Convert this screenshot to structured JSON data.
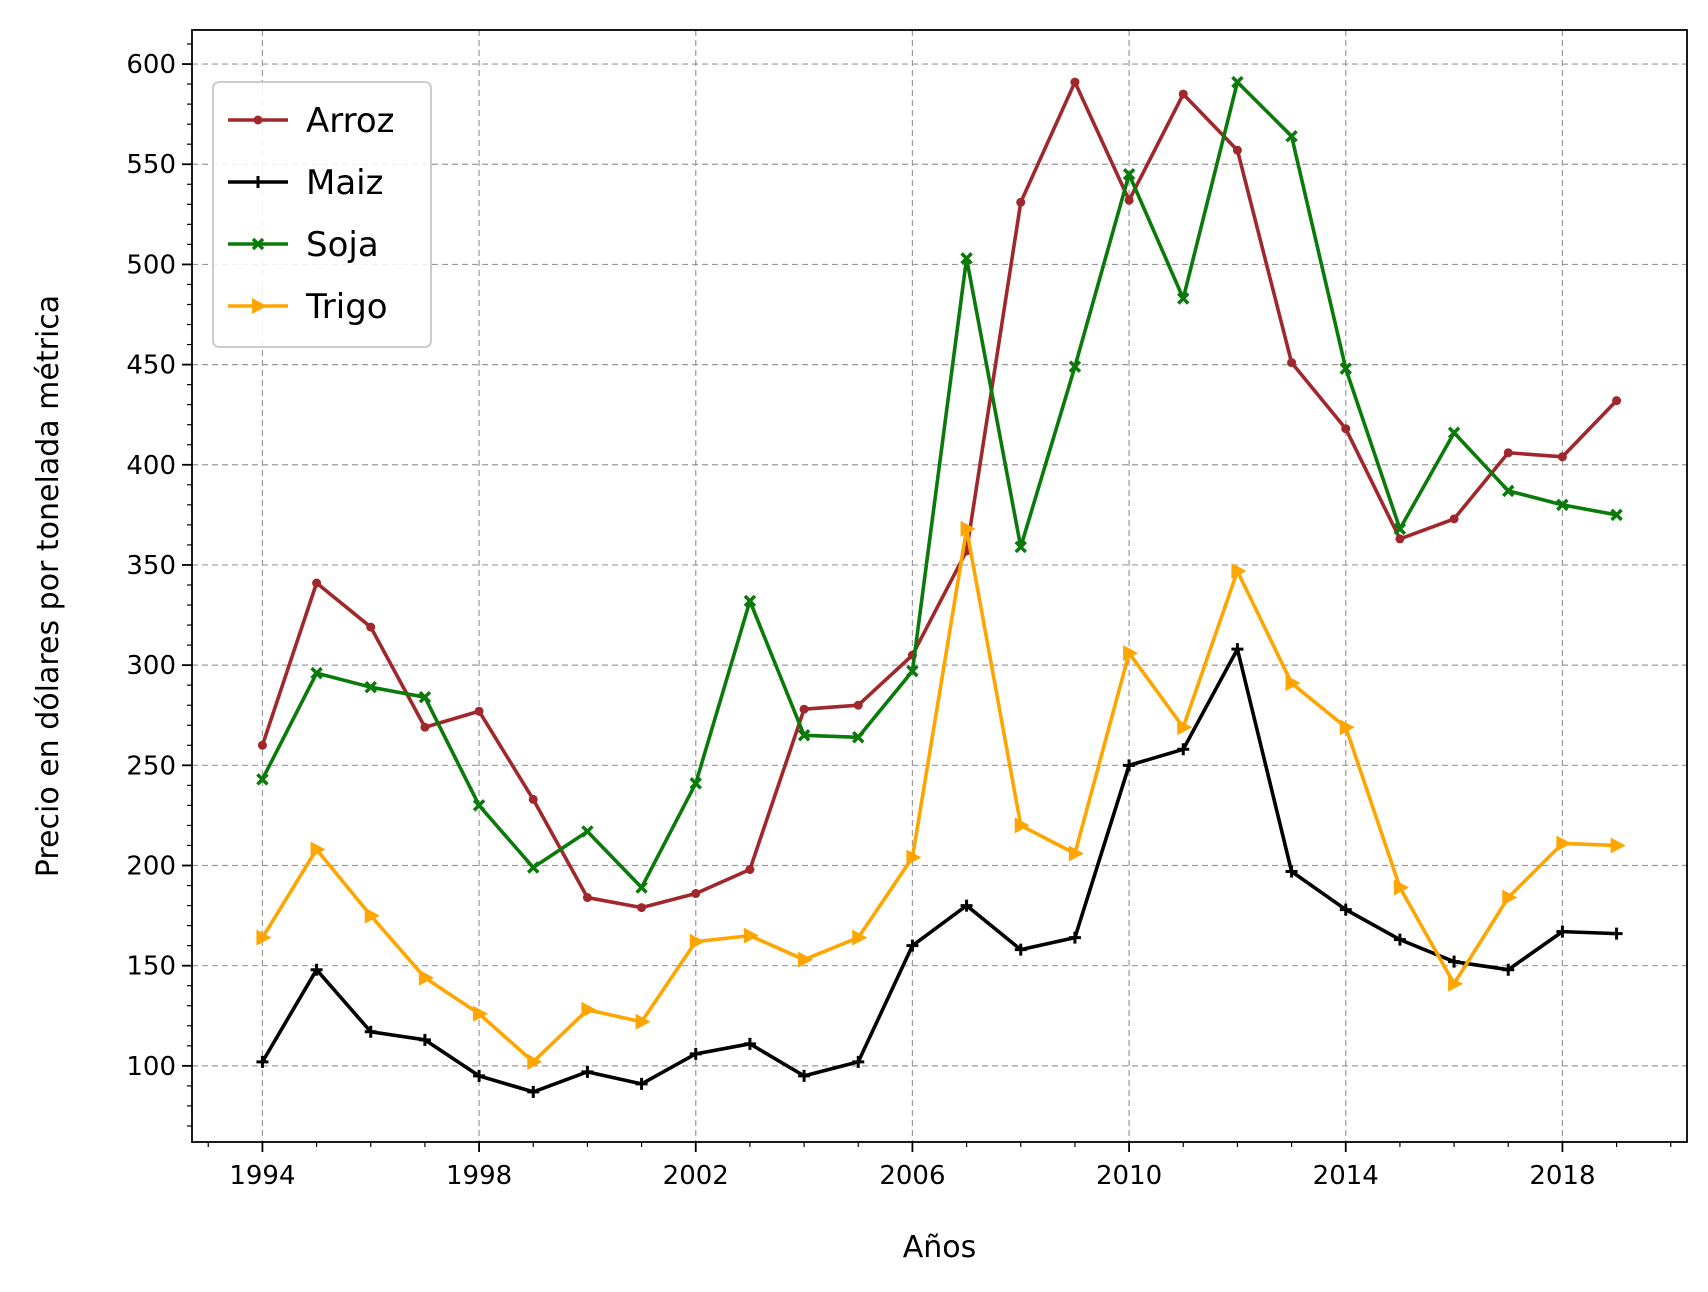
{
  "chart_data": {
    "type": "line",
    "title": "",
    "xlabel": "Años",
    "ylabel": "Precio en dólares por tonelada métrica",
    "xlim": [
      1992.7,
      2020.3
    ],
    "ylim": [
      62,
      617
    ],
    "x_ticks": [
      1994,
      1998,
      2002,
      2006,
      2010,
      2014,
      2018
    ],
    "y_ticks": [
      100,
      150,
      200,
      250,
      300,
      350,
      400,
      450,
      500,
      550,
      600
    ],
    "grid": true,
    "legend_position": "upper-left",
    "x": [
      1994,
      1995,
      1996,
      1997,
      1998,
      1999,
      2000,
      2001,
      2002,
      2003,
      2004,
      2005,
      2006,
      2007,
      2008,
      2009,
      2010,
      2011,
      2012,
      2013,
      2014,
      2015,
      2016,
      2017,
      2018,
      2019
    ],
    "series": [
      {
        "name": "Arroz",
        "color": "#a0282d",
        "marker": "dot",
        "values": [
          260,
          341,
          319,
          269,
          277,
          233,
          184,
          179,
          186,
          198,
          278,
          280,
          305,
          357,
          531,
          591,
          532,
          585,
          557,
          451,
          418,
          363,
          373,
          406,
          404,
          432
        ]
      },
      {
        "name": "Maiz",
        "color": "#000000",
        "marker": "plus",
        "values": [
          102,
          148,
          117,
          113,
          95,
          87,
          97,
          91,
          106,
          111,
          95,
          102,
          160,
          180,
          158,
          164,
          250,
          258,
          308,
          197,
          178,
          163,
          152,
          148,
          167,
          166
        ]
      },
      {
        "name": "Soja",
        "color": "#0a7a0a",
        "marker": "x",
        "values": [
          243,
          296,
          289,
          284,
          230,
          199,
          217,
          189,
          241,
          332,
          265,
          264,
          297,
          503,
          359,
          449,
          545,
          483,
          591,
          564,
          448,
          368,
          416,
          387,
          380,
          375
        ]
      },
      {
        "name": "Trigo",
        "color": "#ffa500",
        "marker": "triangle-right",
        "values": [
          164,
          208,
          175,
          144,
          126,
          102,
          128,
          122,
          162,
          165,
          153,
          164,
          204,
          368,
          220,
          206,
          306,
          269,
          347,
          291,
          269,
          189,
          141,
          184,
          211,
          210
        ]
      }
    ]
  }
}
